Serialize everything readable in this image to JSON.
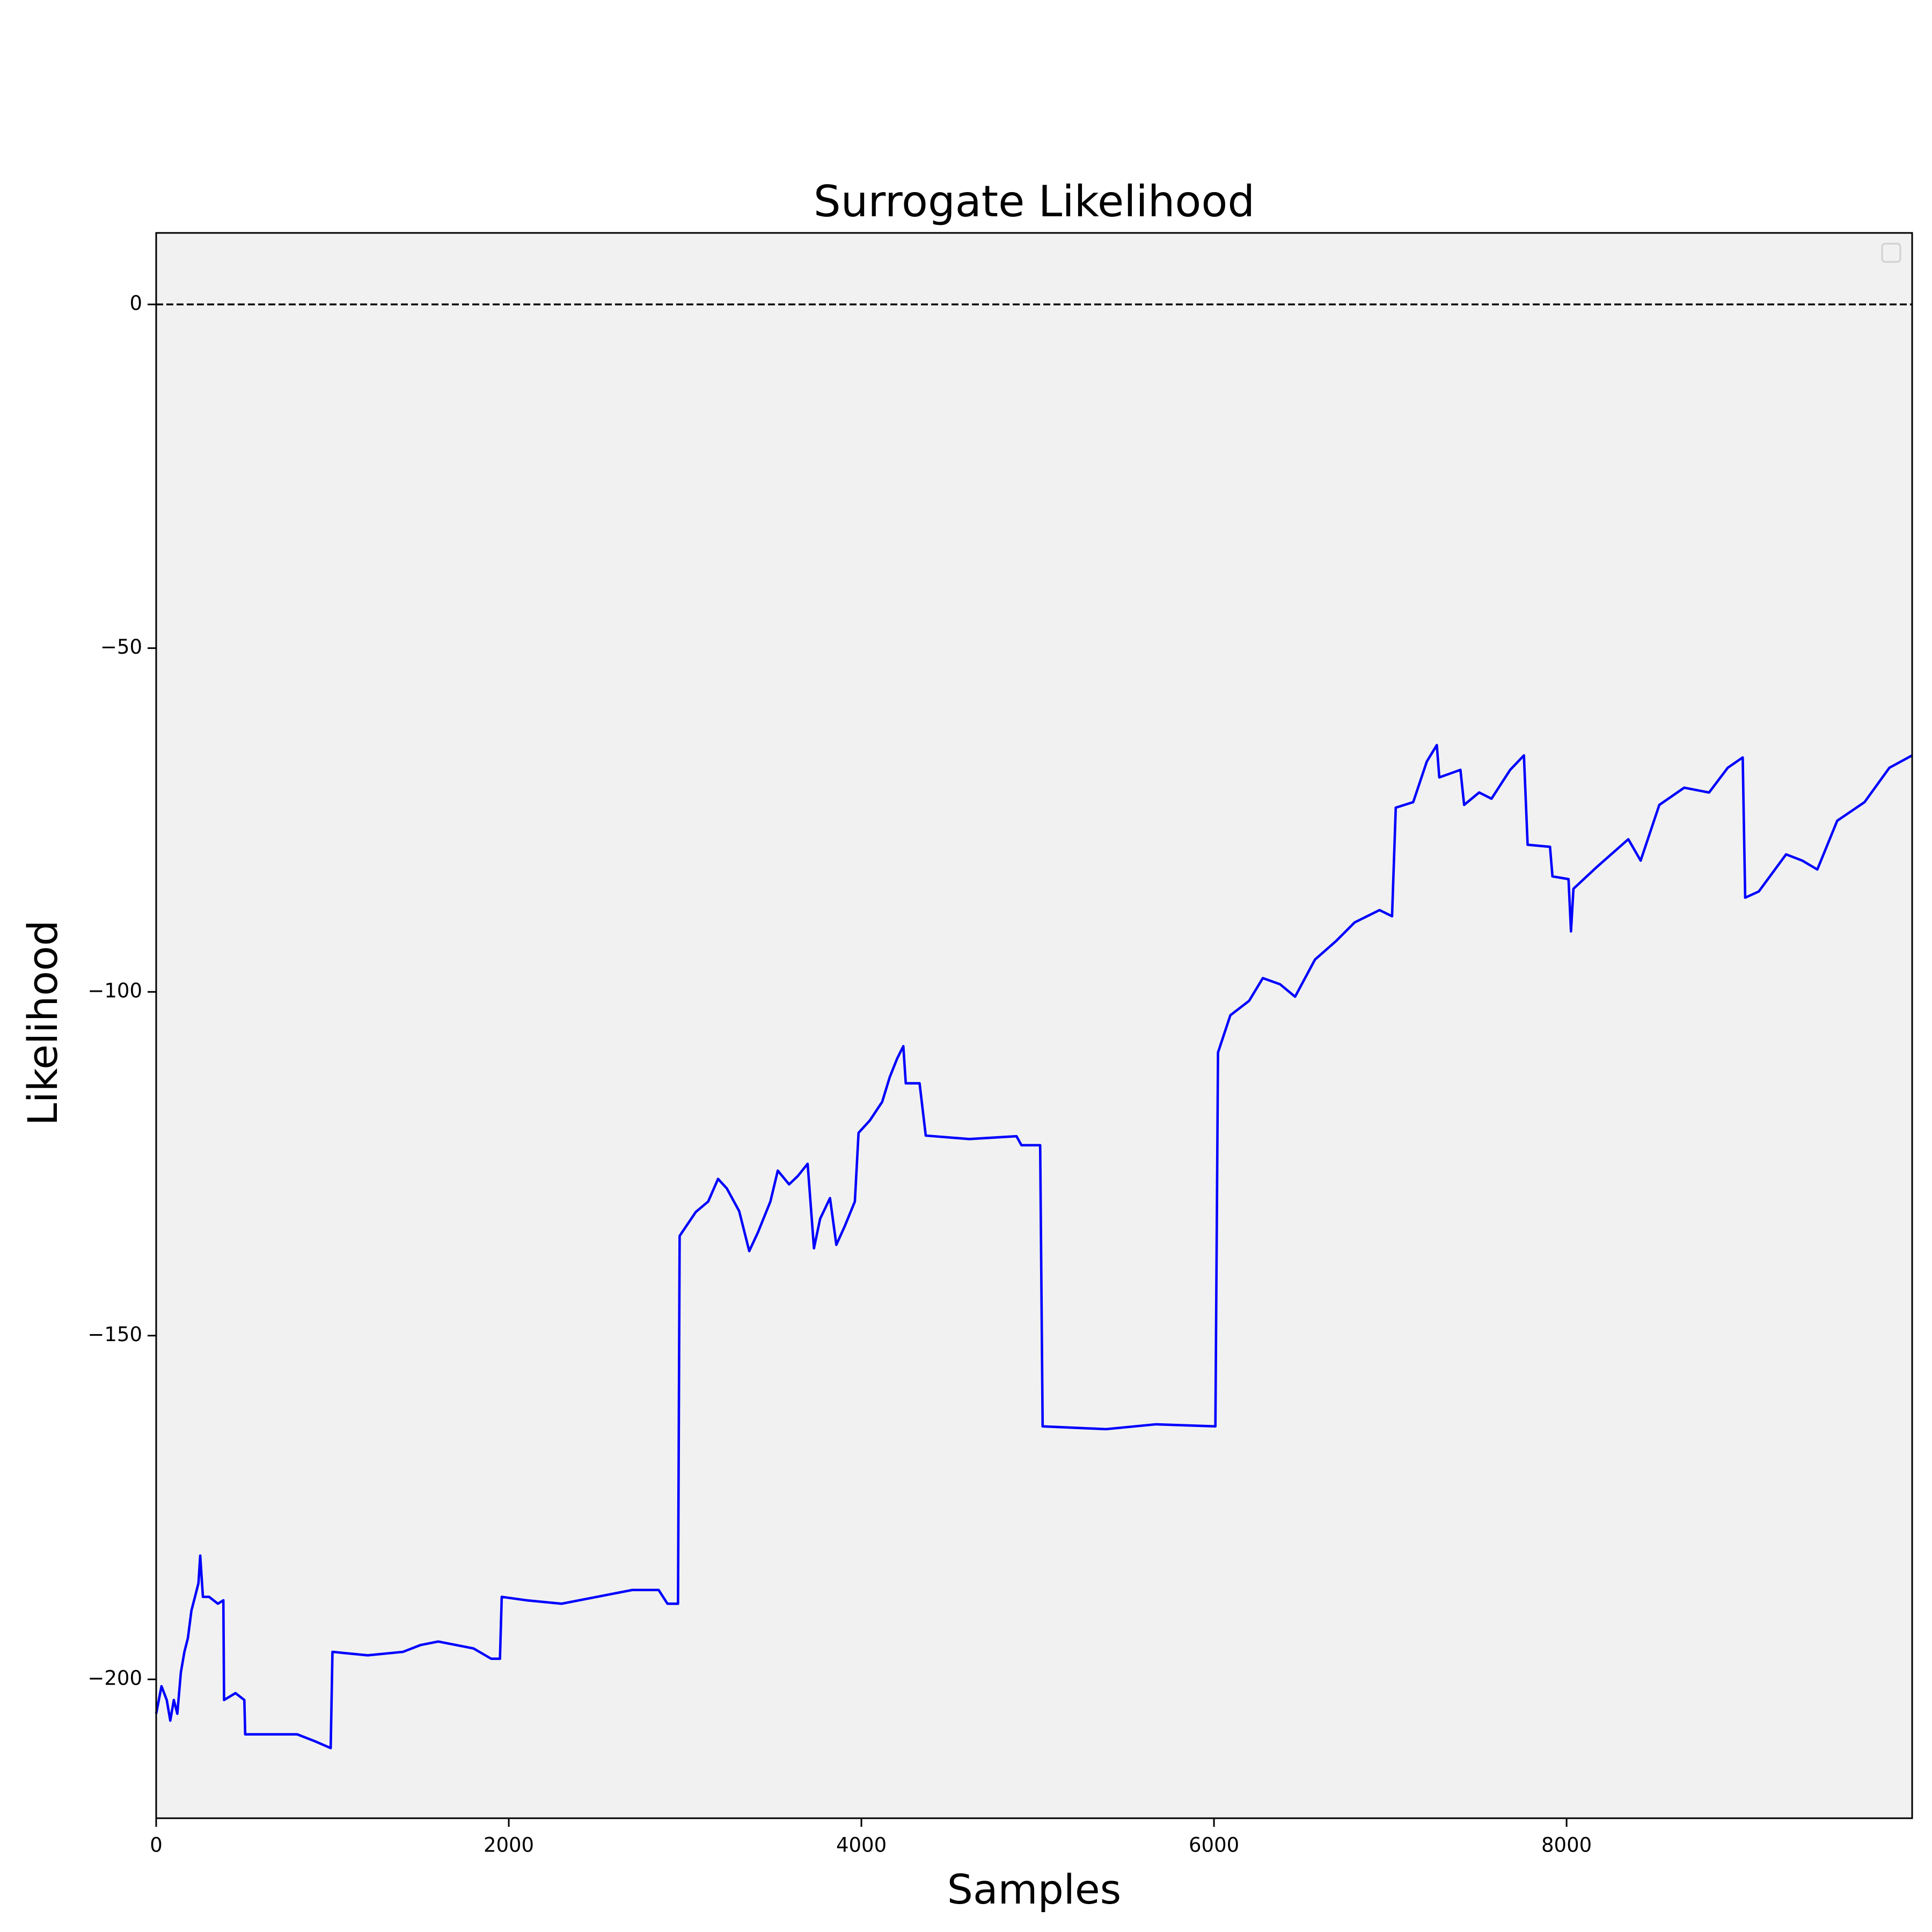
{
  "chart_data": {
    "type": "line",
    "title": "Surrogate  Likelihood",
    "xlabel": "Samples",
    "ylabel": "Likelihood",
    "xlim": [
      0,
      9960
    ],
    "ylim": [
      -220.2,
      10.4
    ],
    "xticks": [
      0,
      2000,
      4000,
      6000,
      8000
    ],
    "yticks": [
      {
        "value": -200,
        "label": "−200"
      },
      {
        "value": -150,
        "label": "−150"
      },
      {
        "value": -100,
        "label": "−100"
      },
      {
        "value": -50,
        "label": "−50"
      },
      0
    ],
    "reference_line": {
      "y": 0,
      "style": "dashed",
      "color": "#000000"
    },
    "legend": "upper right",
    "x": [
      0,
      30,
      60,
      80,
      100,
      120,
      140,
      160,
      180,
      200,
      220,
      240,
      250,
      265,
      300,
      350,
      381,
      385,
      450,
      500,
      505,
      600,
      700,
      800,
      900,
      990,
      1000,
      1200,
      1400,
      1500,
      1600,
      1800,
      1900,
      1950,
      1960,
      2100,
      2300,
      2500,
      2700,
      2850,
      2900,
      2960,
      2969,
      3061,
      3131,
      3187,
      3237,
      3307,
      3364,
      3413,
      3484,
      3526,
      3590,
      3639,
      3695,
      3731,
      3766,
      3822,
      3858,
      3907,
      3963,
      3984,
      4048,
      4118,
      4161,
      4203,
      4238,
      4252,
      4330,
      4365,
      4612,
      4880,
      4908,
      5014,
      5028,
      5388,
      5670,
      6008,
      6023,
      6093,
      6199,
      6277,
      6375,
      6460,
      6573,
      6693,
      6798,
      6939,
      7010,
      7031,
      7130,
      7207,
      7264,
      7278,
      7398,
      7419,
      7504,
      7574,
      7680,
      7758,
      7779,
      7906,
      7920,
      8011,
      8025,
      8039,
      8173,
      8350,
      8420,
      8526,
      8667,
      8808,
      8914,
      8999,
      9013,
      9090,
      9245,
      9337,
      9422,
      9535,
      9690,
      9831,
      9960
    ],
    "series": [
      {
        "color": "#0000ff",
        "values": [
          -205,
          -201,
          -203,
          -206,
          -203,
          -205,
          -199,
          -196,
          -194,
          -190,
          -188,
          -186,
          -182,
          -188,
          -188,
          -189,
          -188.5,
          -203,
          -202,
          -203,
          -208,
          -208,
          -208,
          -208,
          -209,
          -210,
          -196,
          -196.5,
          -196,
          -195,
          -194.5,
          -195.5,
          -197,
          -197,
          -188,
          -188.5,
          -189,
          -188,
          -187,
          -187,
          -189,
          -189,
          -135.5,
          -132,
          -130.5,
          -127.2,
          -128.6,
          -131.9,
          -137.7,
          -135,
          -130.5,
          -126,
          -128,
          -126.8,
          -125,
          -137.3,
          -133,
          -130,
          -136.8,
          -134,
          -130.5,
          -120.5,
          -118.7,
          -116,
          -112.4,
          -109.7,
          -107.9,
          -113.3,
          -113.3,
          -120.9,
          -121.4,
          -121,
          -122.3,
          -122.3,
          -163.2,
          -163.6,
          -162.9,
          -163.2,
          -108.8,
          -103.4,
          -101.3,
          -98,
          -98.9,
          -100.7,
          -95.3,
          -92.6,
          -89.9,
          -88.1,
          -89,
          -73.2,
          -72.4,
          -66.5,
          -64.1,
          -68.8,
          -67.7,
          -72.8,
          -71,
          -71.9,
          -67.7,
          -65.6,
          -78.6,
          -78.9,
          -83.2,
          -83.6,
          -91.2,
          -85,
          -81.8,
          -77.8,
          -80.9,
          -72.8,
          -70.3,
          -71,
          -67.4,
          -65.9,
          -86.3,
          -85.4,
          -80,
          -80.9,
          -82.2,
          -75.1,
          -72.4,
          -67.4,
          -65.6
        ]
      }
    ]
  }
}
